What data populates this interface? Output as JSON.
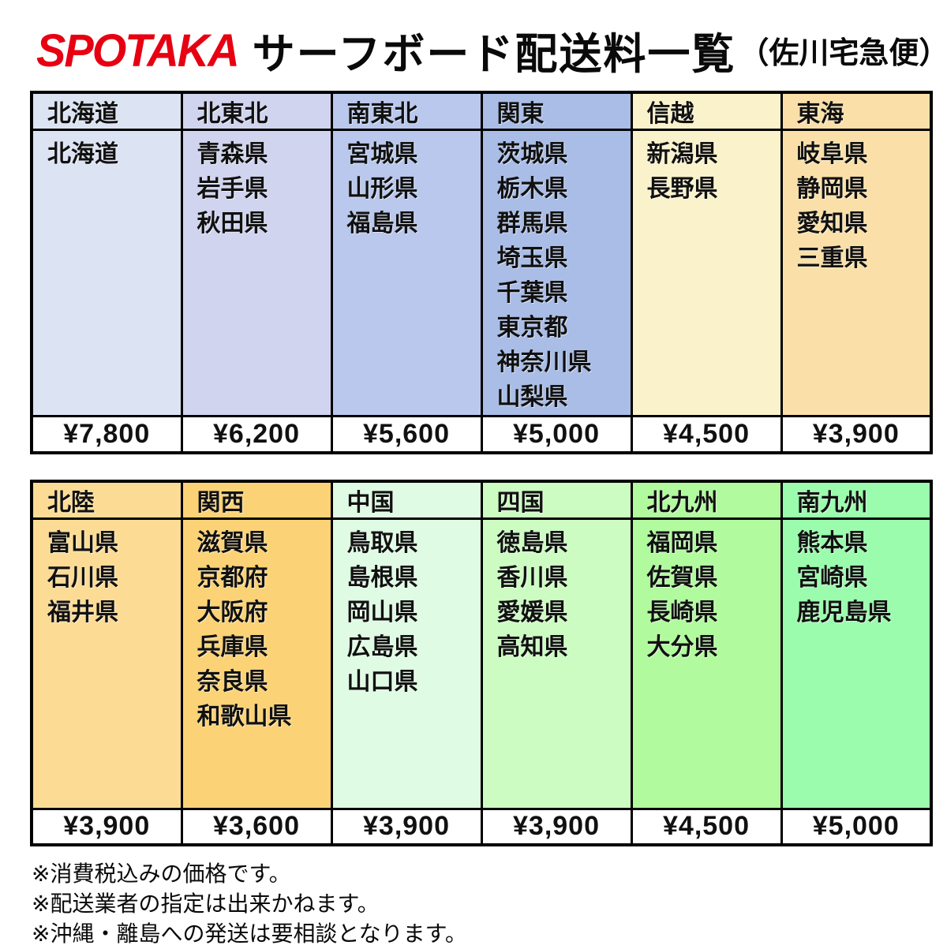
{
  "title": {
    "logo": "SPOTAKA",
    "main": "サーフボード配送料一覧",
    "sub": "（佐川宅急便）"
  },
  "colors": {
    "logo_red": "#e60012",
    "border_black": "#000000",
    "price_cell_bg": "#ffffff"
  },
  "tables": [
    {
      "columns": [
        {
          "region": "北海道",
          "prefectures": [
            "北海道"
          ],
          "price": "¥7,800",
          "color": "#dce3f2"
        },
        {
          "region": "北東北",
          "prefectures": [
            "青森県",
            "岩手県",
            "秋田県"
          ],
          "price": "¥6,200",
          "color": "#d0d4ee"
        },
        {
          "region": "南東北",
          "prefectures": [
            "宮城県",
            "山形県",
            "福島県"
          ],
          "price": "¥5,600",
          "color": "#b9c8ec"
        },
        {
          "region": "関東",
          "prefectures": [
            "茨城県",
            "栃木県",
            "群馬県",
            "埼玉県",
            "千葉県",
            "東京都",
            "神奈川県",
            "山梨県"
          ],
          "price": "¥5,000",
          "color": "#a9bde7"
        },
        {
          "region": "信越",
          "prefectures": [
            "新潟県",
            "長野県"
          ],
          "price": "¥4,500",
          "color": "#faf2cb"
        },
        {
          "region": "東海",
          "prefectures": [
            "岐阜県",
            "静岡県",
            "愛知県",
            "三重県"
          ],
          "price": "¥3,900",
          "color": "#fae0a8"
        }
      ]
    },
    {
      "columns": [
        {
          "region": "北陸",
          "prefectures": [
            "富山県",
            "石川県",
            "福井県"
          ],
          "price": "¥3,900",
          "color": "#fcdc95"
        },
        {
          "region": "関西",
          "prefectures": [
            "滋賀県",
            "京都府",
            "大阪府",
            "兵庫県",
            "奈良県",
            "和歌山県"
          ],
          "price": "¥3,600",
          "color": "#fbd376"
        },
        {
          "region": "中国",
          "prefectures": [
            "鳥取県",
            "島根県",
            "岡山県",
            "広島県",
            "山口県"
          ],
          "price": "¥3,900",
          "color": "#dffbe3"
        },
        {
          "region": "四国",
          "prefectures": [
            "徳島県",
            "香川県",
            "愛媛県",
            "高知県"
          ],
          "price": "¥3,900",
          "color": "#cdfcc3"
        },
        {
          "region": "北九州",
          "prefectures": [
            "福岡県",
            "佐賀県",
            "長崎県",
            "大分県"
          ],
          "price": "¥4,500",
          "color": "#b1fb9e"
        },
        {
          "region": "南九州",
          "prefectures": [
            "熊本県",
            "宮崎県",
            "鹿児島県"
          ],
          "price": "¥5,000",
          "color": "#9bfcad"
        }
      ]
    }
  ],
  "notes": [
    "※消費税込みの価格です。",
    "※配送業者の指定は出来かねます。",
    "※沖縄・離島への発送は要相談となります。"
  ]
}
